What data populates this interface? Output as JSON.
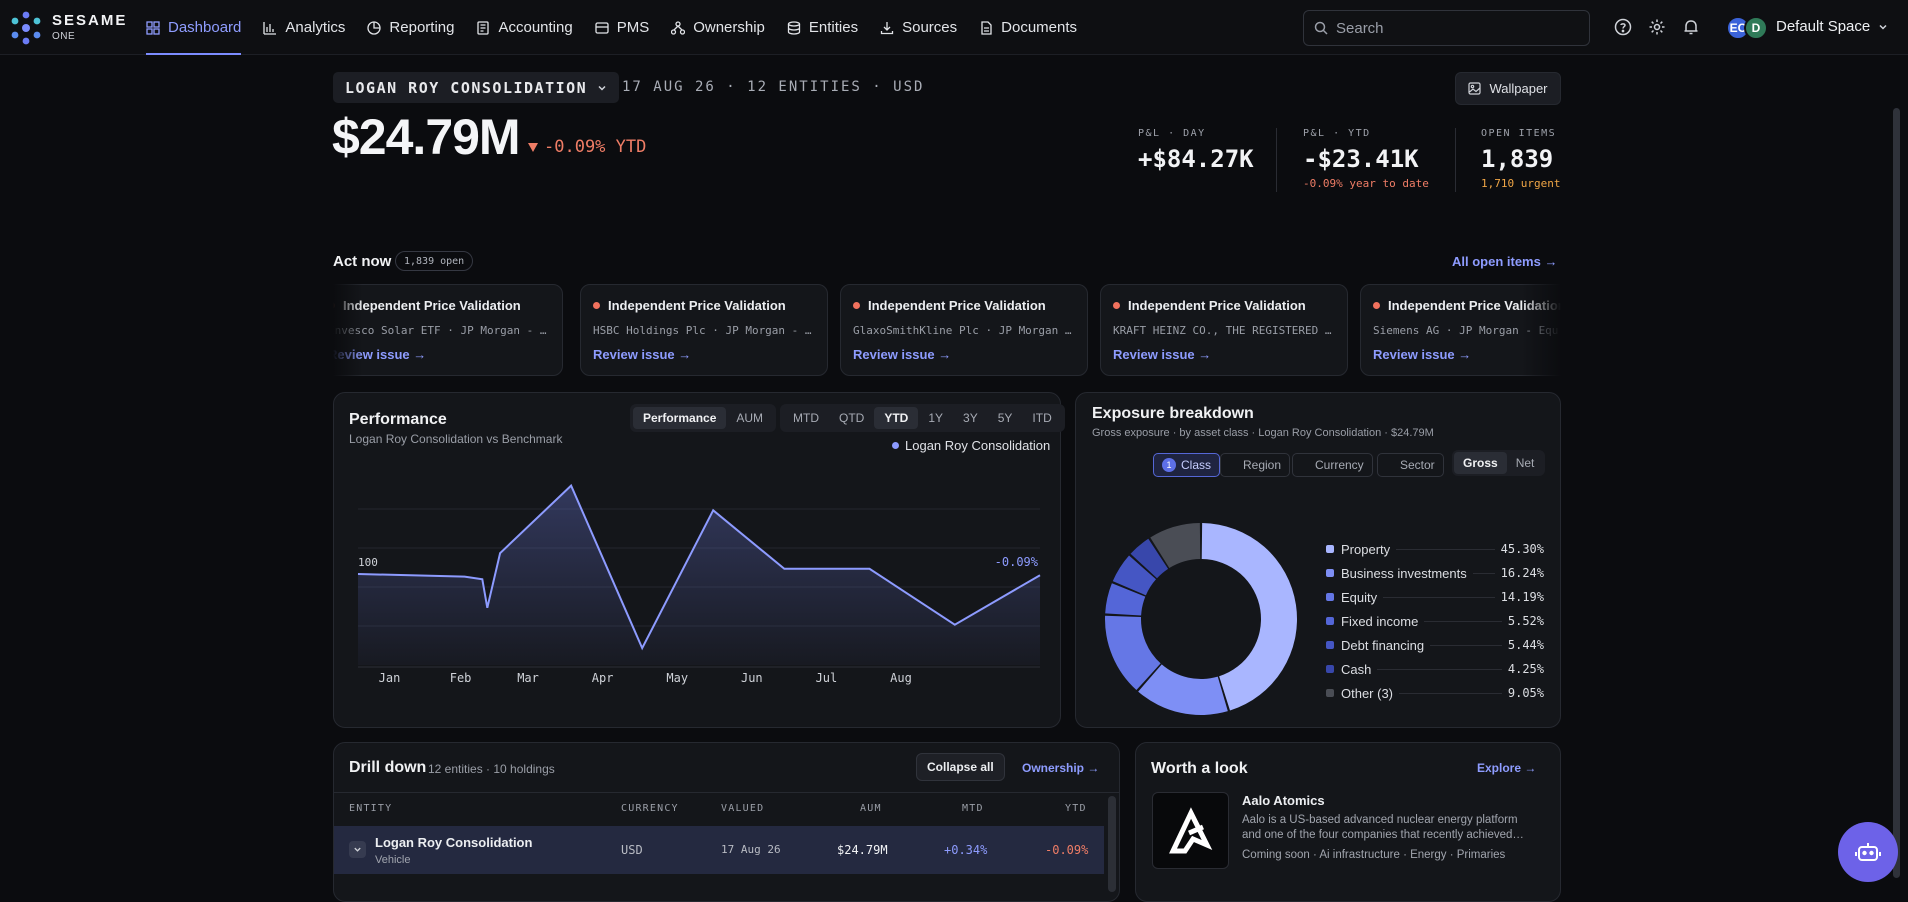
{
  "app": {
    "brand": "SESAME",
    "brand_sub": "ONE",
    "nav": [
      {
        "label": "Dashboard",
        "icon": "grid-icon",
        "active": true
      },
      {
        "label": "Analytics",
        "icon": "bar-chart-icon"
      },
      {
        "label": "Reporting",
        "icon": "pie-icon"
      },
      {
        "label": "Accounting",
        "icon": "ledger-icon"
      },
      {
        "label": "PMS",
        "icon": "card-icon"
      },
      {
        "label": "Ownership",
        "icon": "tree-icon"
      },
      {
        "label": "Entities",
        "icon": "database-icon"
      },
      {
        "label": "Sources",
        "icon": "download-icon"
      },
      {
        "label": "Documents",
        "icon": "document-icon"
      }
    ],
    "search_placeholder": "Search",
    "avatars": [
      "EC",
      "D"
    ],
    "space": "Default Space",
    "accent": "#7c8cff"
  },
  "header": {
    "entity": "LOGAN ROY CONSOLIDATION",
    "meta": "17 AUG 26 · 12 ENTITIES · USD",
    "wallpaper_label": "Wallpaper",
    "value": "$24.79M",
    "change": "-0.09%",
    "change_period": "YTD",
    "kpis": [
      {
        "label": "P&L · DAY",
        "value": "+$84.27K",
        "sub": ""
      },
      {
        "label": "P&L · YTD",
        "value": "-$23.41K",
        "sub": "-0.09% year to date"
      },
      {
        "label": "OPEN ITEMS",
        "value": "1,839",
        "sub": "1,710 urgent"
      }
    ]
  },
  "act_now": {
    "title": "Act now",
    "count": "1,839 open",
    "all_link": "All open items →",
    "cards": [
      {
        "title": "Independent Price Validation",
        "detail": "Invesco Solar ETF · JP Morgan - …",
        "action": "Review issue →"
      },
      {
        "title": "Independent Price Validation",
        "detail": "HSBC Holdings Plc · JP Morgan - …",
        "action": "Review issue →"
      },
      {
        "title": "Independent Price Validation",
        "detail": "GlaxoSmithKline Plc · JP Morgan …",
        "action": "Review issue →"
      },
      {
        "title": "Independent Price Validation",
        "detail": "KRAFT HEINZ CO., THE REGISTERED …",
        "action": "Review issue →"
      },
      {
        "title": "Independent Price Validation",
        "detail": "Siemens AG · JP Morgan - Equ",
        "action": "Review issue →"
      }
    ]
  },
  "performance": {
    "title": "Performance",
    "subtitle": "Logan Roy Consolidation vs Benchmark",
    "view_tabs": [
      "Performance",
      "AUM"
    ],
    "period_tabs": [
      "MTD",
      "QTD",
      "YTD",
      "1Y",
      "3Y",
      "5Y",
      "ITD"
    ],
    "active_period": "YTD",
    "legend": "Logan Roy Consolidation",
    "baseline_label": "100",
    "end_label": "-0.09%"
  },
  "chart_data": {
    "type": "area",
    "series": [
      {
        "name": "Logan Roy Consolidation",
        "values": [
          100,
          99.8,
          99.6,
          97.4,
          101.6,
          106.8,
          94.3,
          104.9,
          100.4,
          100.4,
          96.1,
          99.91
        ]
      }
    ],
    "x": [
      0,
      1.5,
      1.75,
      1.82,
      2.0,
      3.0,
      4.0,
      5.0,
      6.0,
      7.2,
      8.4,
      9.6
    ],
    "categories": [
      "Jan",
      "Feb",
      "Mar",
      "Apr",
      "May",
      "Jun",
      "Jul",
      "Aug"
    ],
    "baseline": 100,
    "ylim": [
      93,
      108
    ],
    "color": "#8d9bff"
  },
  "exposure": {
    "title": "Exposure breakdown",
    "subtitle": "Gross exposure · by asset class · Logan Roy Consolidation · $24.79M",
    "group_tabs": [
      {
        "label": "Class",
        "badge": "1",
        "on": true
      },
      {
        "label": "Region"
      },
      {
        "label": "Currency"
      },
      {
        "label": "Sector"
      }
    ],
    "mode_tabs": [
      "Gross",
      "Net"
    ],
    "items": [
      {
        "name": "Property",
        "pct": "45.30%",
        "value": 45.3,
        "color": "#a9b6ff"
      },
      {
        "name": "Business investments",
        "pct": "16.24%",
        "value": 16.24,
        "color": "#7e8ff5"
      },
      {
        "name": "Equity",
        "pct": "14.19%",
        "value": 14.19,
        "color": "#6577e6"
      },
      {
        "name": "Fixed income",
        "pct": "5.52%",
        "value": 5.52,
        "color": "#5466d8"
      },
      {
        "name": "Debt financing",
        "pct": "5.44%",
        "value": 5.44,
        "color": "#4556c4"
      },
      {
        "name": "Cash",
        "pct": "4.25%",
        "value": 4.25,
        "color": "#3847ab"
      },
      {
        "name": "Other (3)",
        "pct": "9.05%",
        "value": 9.05,
        "color": "#4a4d55"
      }
    ]
  },
  "drill": {
    "title": "Drill down",
    "subtitle": "12 entities · 10 holdings",
    "collapse_label": "Collapse all",
    "ownership_link": "Ownership →",
    "columns": [
      "ENTITY",
      "CURRENCY",
      "VALUED",
      "AUM",
      "MTD",
      "YTD"
    ],
    "rows": [
      {
        "entity": "Logan Roy Consolidation",
        "type": "Vehicle",
        "currency": "USD",
        "valued": "17 Aug 26",
        "aum": "$24.79M",
        "mtd": "+0.34%",
        "ytd": "-0.09%"
      }
    ]
  },
  "worth": {
    "title": "Worth a look",
    "explore": "Explore →",
    "company": "Aalo Atomics",
    "description_line1": "Aalo is a US-based advanced nuclear energy platform",
    "description_line2": "and one of the four companies that recently achieved…",
    "tags": "Coming soon · Ai infrastructure · Energy · Primaries"
  }
}
